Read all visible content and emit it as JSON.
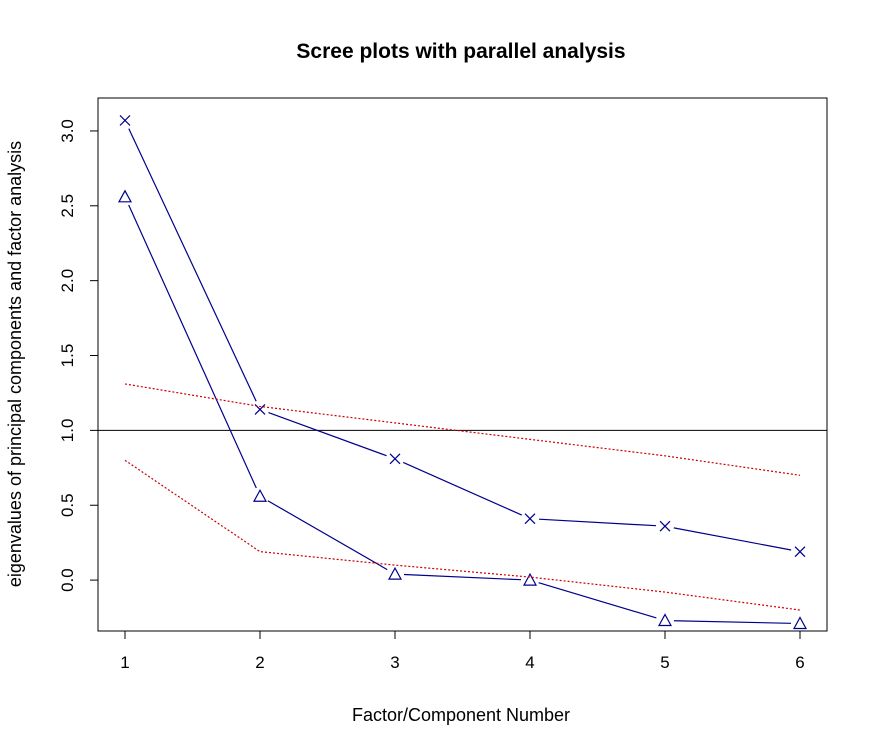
{
  "chart_data": {
    "type": "line",
    "title": "Scree plots with parallel analysis",
    "xlabel": "Factor/Component Number",
    "ylabel": "eigenvalues of principal components and factor analysis",
    "x": [
      1,
      2,
      3,
      4,
      5,
      6
    ],
    "xlim": [
      0.8,
      6.2
    ],
    "ylim": [
      -0.34,
      3.22
    ],
    "xticks": [
      "1",
      "2",
      "3",
      "4",
      "5",
      "6"
    ],
    "yticks": [
      "0.0",
      "0.5",
      "1.0",
      "1.5",
      "2.0",
      "2.5",
      "3.0"
    ],
    "reference_line": 1.0,
    "grid": false,
    "series": [
      {
        "marker": "x",
        "line": "solid",
        "color": "#00008B",
        "values": [
          3.07,
          1.14,
          0.81,
          0.41,
          0.36,
          0.19
        ]
      },
      {
        "marker": "triangle",
        "line": "solid",
        "color": "#00008B",
        "values": [
          2.56,
          0.56,
          0.04,
          0.0,
          -0.27,
          -0.29
        ]
      },
      {
        "marker": "none",
        "line": "dotted",
        "color": "#CC0000",
        "values": [
          1.31,
          1.16,
          1.05,
          0.94,
          0.83,
          0.7
        ]
      },
      {
        "marker": "none",
        "line": "dotted",
        "color": "#CC0000",
        "values": [
          0.8,
          0.19,
          0.1,
          0.02,
          -0.08,
          -0.2
        ]
      }
    ]
  }
}
